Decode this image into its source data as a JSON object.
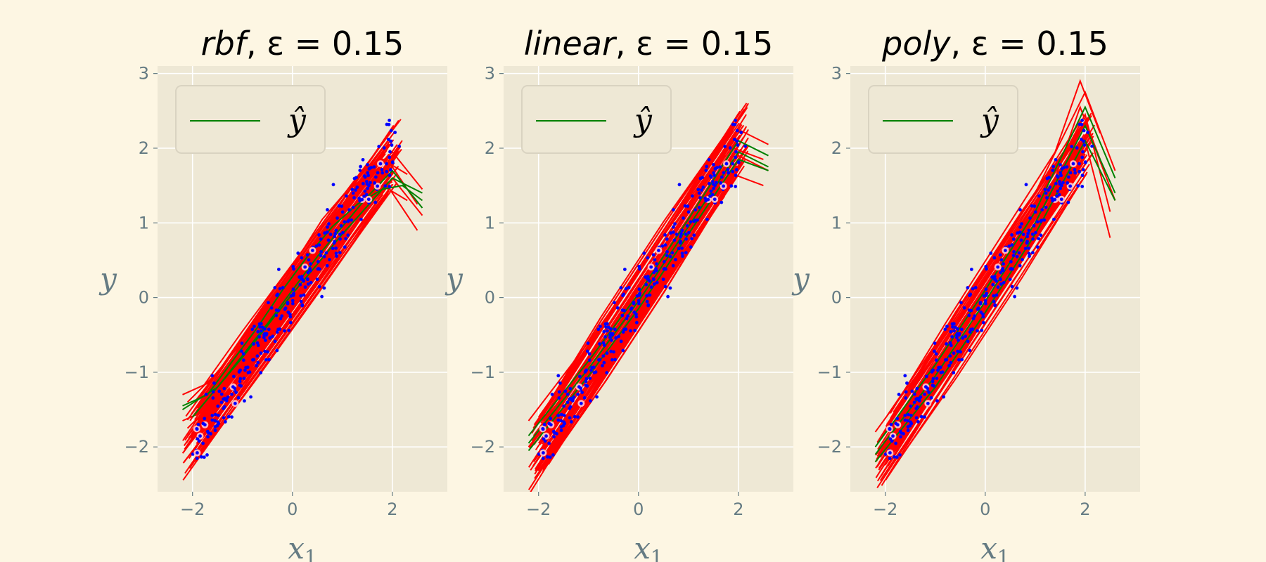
{
  "figure": {
    "background": "#fdf6e3",
    "axes_background": "#eee8d5",
    "grid_color": "#ffffff",
    "tick_color": "#657b83"
  },
  "chart_data": [
    {
      "type": "line",
      "title_kernel": "rbf",
      "title_suffix": ", ε = 0.15",
      "xlabel_base": "x",
      "xlabel_sub": "1",
      "ylabel": "y",
      "xlim": [
        -2.7,
        3.1
      ],
      "ylim": [
        -2.6,
        3.1
      ],
      "xticks": [
        -2,
        0,
        2
      ],
      "yticks": [
        -2,
        -1,
        0,
        1,
        2,
        3
      ],
      "xtick_labels": [
        "−2",
        "0",
        "2"
      ],
      "ytick_labels": [
        "−2",
        "−1",
        "0",
        "1",
        "2",
        "3"
      ],
      "grid": true,
      "legend": {
        "label": "ŷ",
        "location": "upper-left",
        "color": "#008000"
      },
      "fit_color": "#008000",
      "band_color": "#ff0000",
      "point_color": "#0000ff",
      "sv_color": "#ffb6c1",
      "fit": {
        "x": [
          -2.2,
          -1.7,
          -1.2,
          -0.7,
          -0.2,
          0.3,
          0.8,
          1.3,
          1.8,
          2.2,
          2.6
        ],
        "y": [
          -1.45,
          -1.3,
          -0.85,
          -0.4,
          0.1,
          0.55,
          0.95,
          1.25,
          1.45,
          1.5,
          1.3
        ]
      },
      "fits_extra": [
        {
          "x": [
            -2.2,
            -1.5,
            -0.5,
            0.5,
            1.5,
            2.0,
            2.6
          ],
          "y": [
            -1.5,
            -1.2,
            -0.35,
            0.55,
            1.35,
            1.7,
            1.2
          ]
        },
        {
          "x": [
            -2.0,
            -1.0,
            0.0,
            1.0,
            2.0,
            2.6
          ],
          "y": [
            -1.6,
            -0.8,
            0.05,
            0.85,
            1.6,
            1.4
          ]
        }
      ],
      "epsilon": 0.15,
      "bands": [
        {
          "x": [
            -2.2,
            -1.7,
            -1.0,
            0.0,
            1.0,
            2.0,
            2.6
          ],
          "y": [
            -1.3,
            -1.15,
            -0.6,
            0.3,
            1.2,
            1.95,
            1.45
          ]
        },
        {
          "x": [
            -2.2,
            -1.7,
            -1.0,
            0.0,
            1.0,
            2.0,
            2.6
          ],
          "y": [
            -1.65,
            -1.5,
            -0.95,
            -0.05,
            0.85,
            1.6,
            1.1
          ]
        },
        {
          "x": [
            -2.1,
            -1.5,
            -0.6,
            0.4,
            1.3,
            1.9,
            2.5
          ],
          "y": [
            -1.4,
            -1.0,
            -0.2,
            0.7,
            1.45,
            1.85,
            1.25
          ]
        },
        {
          "x": [
            -2.1,
            -1.5,
            -0.6,
            0.4,
            1.3,
            1.9,
            2.5
          ],
          "y": [
            -1.75,
            -1.35,
            -0.55,
            0.35,
            1.1,
            1.5,
            0.9
          ]
        },
        {
          "x": [
            -1.9,
            -1.2,
            -0.3,
            0.6,
            1.5,
            2.0
          ],
          "y": [
            -1.55,
            -0.85,
            0.1,
            1.05,
            1.75,
            1.9
          ]
        },
        {
          "x": [
            -1.9,
            -1.2,
            -0.3,
            0.6,
            1.5,
            2.0
          ],
          "y": [
            -1.9,
            -1.2,
            -0.25,
            0.7,
            1.4,
            1.55
          ]
        },
        {
          "x": [
            -1.8,
            -1.0,
            0.0,
            1.0,
            1.8,
            2.3
          ],
          "y": [
            -1.2,
            -0.45,
            0.45,
            1.35,
            1.85,
            1.65
          ]
        },
        {
          "x": [
            -1.8,
            -1.0,
            0.0,
            1.0,
            1.8,
            2.3
          ],
          "y": [
            -1.55,
            -0.8,
            0.1,
            1.0,
            1.5,
            1.3
          ]
        }
      ],
      "band_count": 60,
      "point_count": 300,
      "point_slope": 1.0,
      "point_noise": 0.22,
      "x_range": [
        -2.0,
        2.0
      ]
    },
    {
      "type": "line",
      "title_kernel": "linear",
      "title_suffix": ", ε = 0.15",
      "xlabel_base": "x",
      "xlabel_sub": "1",
      "ylabel": "y",
      "xlim": [
        -2.7,
        3.1
      ],
      "ylim": [
        -2.6,
        3.1
      ],
      "xticks": [
        -2,
        0,
        2
      ],
      "yticks": [
        -2,
        -1,
        0,
        1,
        2,
        3
      ],
      "xtick_labels": [
        "−2",
        "0",
        "2"
      ],
      "ytick_labels": [
        "−2",
        "−1",
        "0",
        "1",
        "2",
        "3"
      ],
      "grid": true,
      "legend": {
        "label": "ŷ",
        "location": "upper-left",
        "color": "#008000"
      },
      "fit_color": "#008000",
      "band_color": "#ff0000",
      "point_color": "#0000ff",
      "sv_color": "#ffb6c1",
      "fit": {
        "x": [
          -2.2,
          -1.0,
          0.0,
          1.0,
          2.0,
          2.6
        ],
        "y": [
          -1.95,
          -0.95,
          -0.05,
          0.95,
          1.95,
          1.75
        ]
      },
      "fits_extra": [
        {
          "x": [
            -2.2,
            -1.0,
            0.0,
            1.0,
            2.0,
            2.6
          ],
          "y": [
            -1.85,
            -0.85,
            0.05,
            1.05,
            2.1,
            1.9
          ]
        },
        {
          "x": [
            -2.2,
            -1.0,
            0.0,
            1.0,
            2.0,
            2.6
          ],
          "y": [
            -2.05,
            -1.05,
            -0.15,
            0.85,
            1.85,
            1.7
          ]
        }
      ],
      "epsilon": 0.15,
      "bands": [
        {
          "x": [
            -2.2,
            -1.0,
            0.0,
            1.0,
            2.0,
            2.6
          ],
          "y": [
            -1.65,
            -0.6,
            0.35,
            1.3,
            2.25,
            2.05
          ]
        },
        {
          "x": [
            -2.2,
            -1.0,
            0.0,
            1.0,
            2.0,
            2.6
          ],
          "y": [
            -2.0,
            -0.95,
            0.0,
            0.95,
            1.9,
            1.7
          ]
        },
        {
          "x": [
            -2.1,
            -0.9,
            0.1,
            1.1,
            1.9,
            2.5
          ],
          "y": [
            -1.85,
            -0.75,
            0.2,
            1.1,
            2.0,
            1.85
          ]
        },
        {
          "x": [
            -2.1,
            -0.9,
            0.1,
            1.1,
            1.9,
            2.5
          ],
          "y": [
            -2.2,
            -1.1,
            -0.15,
            0.75,
            1.65,
            1.5
          ]
        },
        {
          "x": [
            -2.0,
            -1.1,
            -0.1,
            0.9,
            1.8,
            2.2
          ],
          "y": [
            -1.6,
            -0.75,
            0.25,
            1.25,
            2.15,
            2.6
          ]
        },
        {
          "x": [
            -2.0,
            -1.1,
            -0.1,
            0.9,
            1.8,
            2.2
          ],
          "y": [
            -1.95,
            -1.1,
            -0.1,
            0.9,
            1.8,
            2.25
          ]
        }
      ],
      "band_count": 60,
      "point_count": 300,
      "point_slope": 1.0,
      "point_noise": 0.22,
      "x_range": [
        -2.0,
        2.0
      ]
    },
    {
      "type": "line",
      "title_kernel": "poly",
      "title_suffix": ", ε = 0.15",
      "xlabel_base": "x",
      "xlabel_sub": "1",
      "ylabel": "y",
      "xlim": [
        -2.7,
        3.1
      ],
      "ylim": [
        -2.6,
        3.1
      ],
      "xticks": [
        -2,
        0,
        2
      ],
      "yticks": [
        -2,
        -1,
        0,
        1,
        2,
        3
      ],
      "xtick_labels": [
        "−2",
        "0",
        "2"
      ],
      "ytick_labels": [
        "−2",
        "−1",
        "0",
        "1",
        "2",
        "3"
      ],
      "grid": true,
      "legend": {
        "label": "ŷ",
        "location": "upper-left",
        "color": "#008000"
      },
      "fit_color": "#008000",
      "band_color": "#ff0000",
      "point_color": "#0000ff",
      "sv_color": "#ffb6c1",
      "fit": {
        "x": [
          -2.2,
          -1.0,
          0.0,
          1.0,
          2.0,
          2.6
        ],
        "y": [
          -2.1,
          -1.05,
          -0.05,
          1.0,
          2.3,
          1.4
        ]
      },
      "fits_extra": [
        {
          "x": [
            -2.2,
            -1.0,
            0.0,
            1.0,
            2.0,
            2.6
          ],
          "y": [
            -2.2,
            -1.2,
            -0.2,
            0.85,
            2.1,
            1.3
          ]
        },
        {
          "x": [
            -2.2,
            -1.0,
            0.0,
            1.0,
            2.0,
            2.6
          ],
          "y": [
            -2.0,
            -0.9,
            0.1,
            1.15,
            2.55,
            1.6
          ]
        }
      ],
      "epsilon": 0.15,
      "bands": [
        {
          "x": [
            -2.2,
            -1.0,
            0.0,
            1.0,
            2.0,
            2.6
          ],
          "y": [
            -1.8,
            -0.7,
            0.35,
            1.4,
            2.75,
            1.7
          ]
        },
        {
          "x": [
            -2.2,
            -1.0,
            0.0,
            1.0,
            2.0,
            2.6
          ],
          "y": [
            -2.2,
            -1.1,
            -0.05,
            1.0,
            2.35,
            1.3
          ]
        },
        {
          "x": [
            -2.1,
            -0.9,
            0.2,
            1.2,
            2.0,
            2.5
          ],
          "y": [
            -2.1,
            -0.9,
            0.3,
            1.45,
            2.45,
            1.15
          ]
        },
        {
          "x": [
            -2.1,
            -0.9,
            0.2,
            1.2,
            2.0,
            2.5
          ],
          "y": [
            -2.45,
            -1.25,
            -0.05,
            1.1,
            2.1,
            0.8
          ]
        },
        {
          "x": [
            -1.9,
            -0.8,
            0.3,
            1.4,
            1.9,
            2.3
          ],
          "y": [
            -1.55,
            -0.35,
            0.8,
            1.95,
            2.9,
            2.2
          ]
        },
        {
          "x": [
            -1.9,
            -0.8,
            0.3,
            1.4,
            1.9,
            2.3
          ],
          "y": [
            -1.9,
            -0.7,
            0.45,
            1.6,
            2.55,
            1.85
          ]
        }
      ],
      "band_count": 60,
      "point_count": 300,
      "point_slope": 1.0,
      "point_noise": 0.22,
      "x_range": [
        -2.0,
        2.0
      ]
    }
  ]
}
